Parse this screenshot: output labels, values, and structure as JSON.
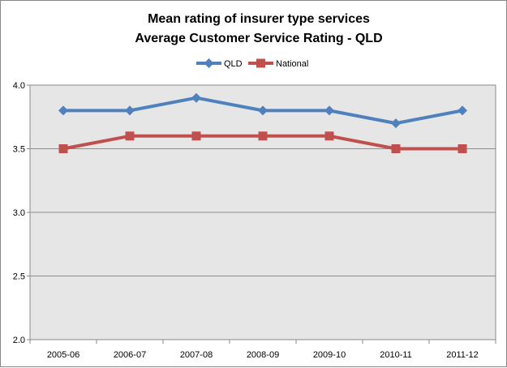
{
  "chart_data": {
    "type": "line",
    "title": "Mean rating of insurer type services",
    "subtitle": "Average Customer Service Rating - QLD",
    "categories": [
      "2005-06",
      "2006-07",
      "2007-08",
      "2008-09",
      "2009-10",
      "2010-11",
      "2011-12"
    ],
    "series": [
      {
        "name": "QLD",
        "color": "#4f81bd",
        "marker": "diamond",
        "values": [
          3.8,
          3.8,
          3.9,
          3.8,
          3.8,
          3.7,
          3.8
        ]
      },
      {
        "name": "National",
        "color": "#c0504d",
        "marker": "square",
        "values": [
          3.5,
          3.6,
          3.6,
          3.6,
          3.6,
          3.5,
          3.5
        ]
      }
    ],
    "ylim": [
      2.0,
      4.0
    ],
    "yticks": [
      "2.0",
      "2.5",
      "3.0",
      "3.5",
      "4.0"
    ],
    "grid": true,
    "legend_position": "top",
    "plot_background": "#e6e6e6"
  }
}
